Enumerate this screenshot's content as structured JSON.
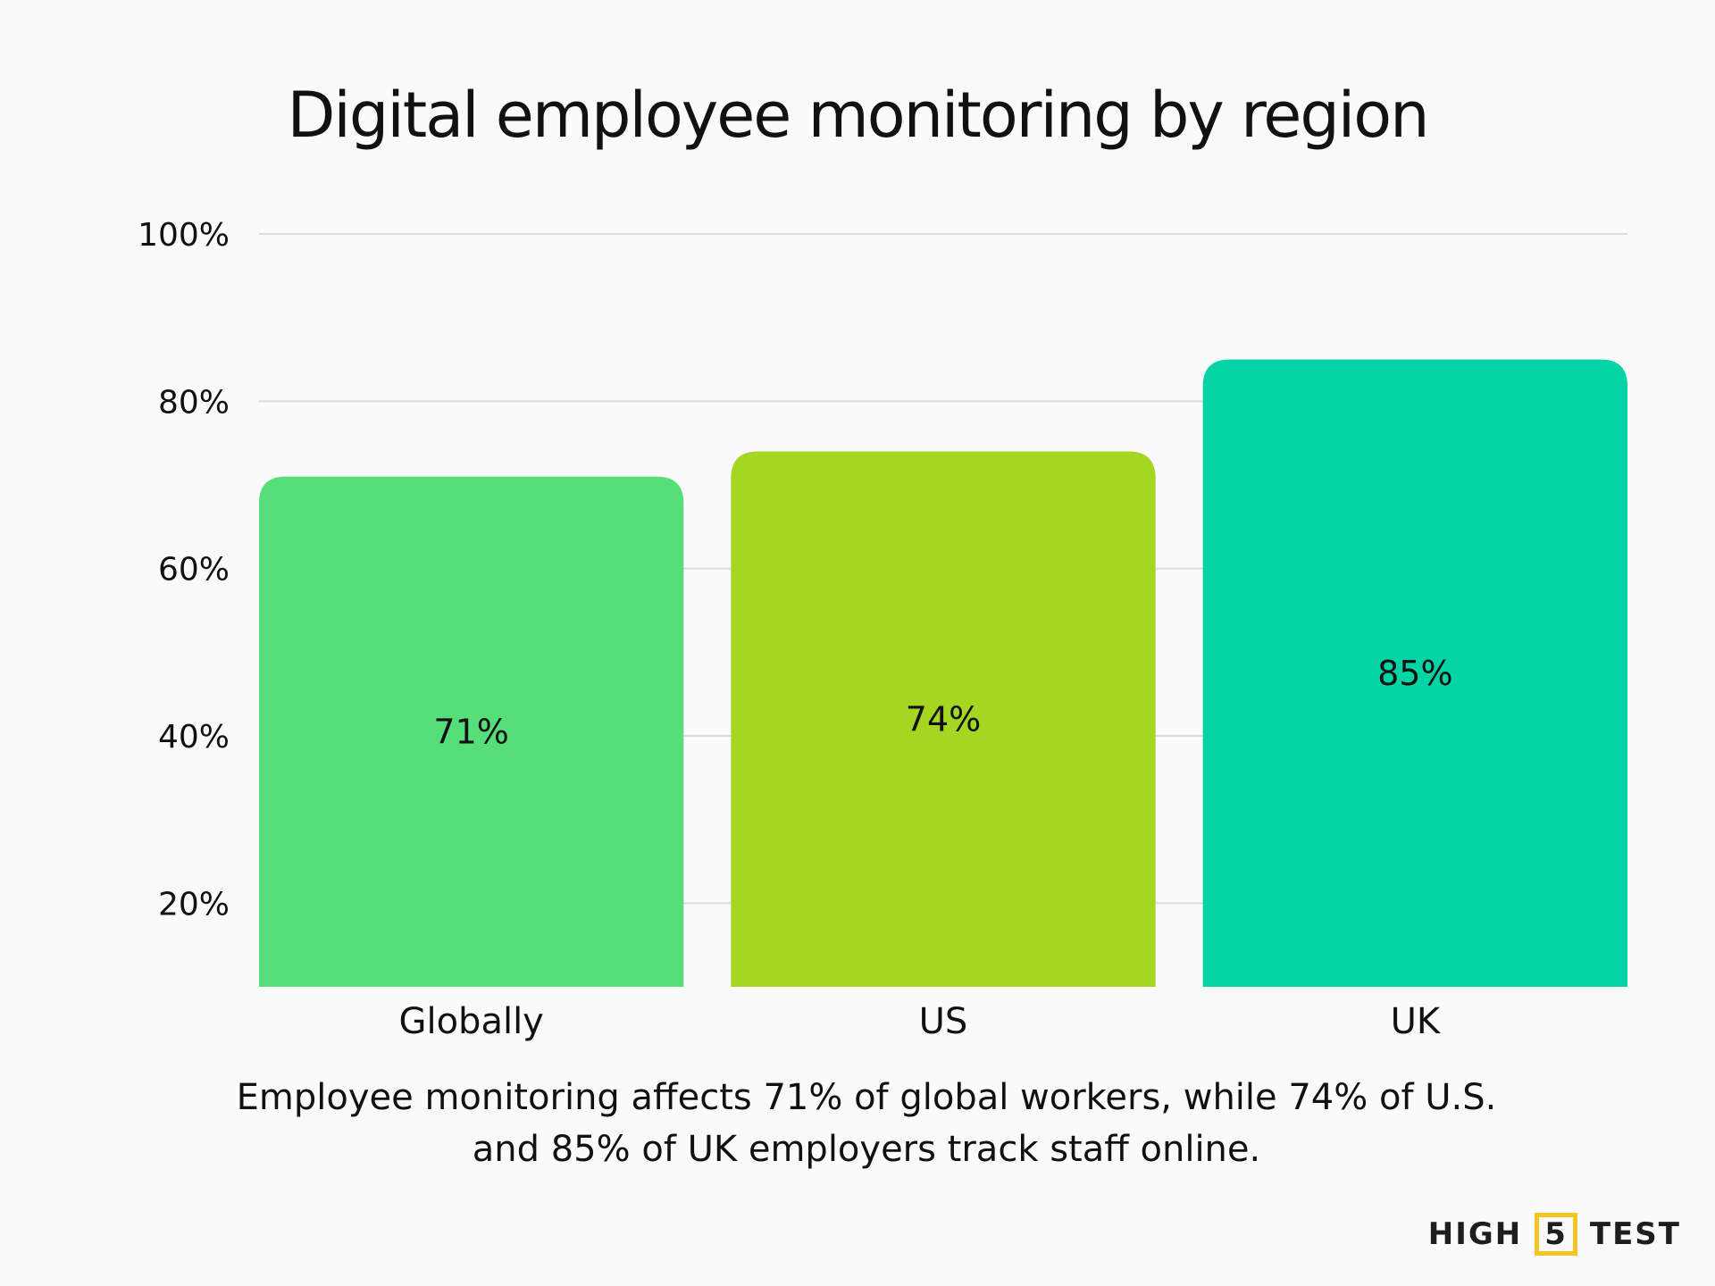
{
  "chart_data": {
    "type": "bar",
    "title": "Digital employee monitoring by region",
    "categories": [
      "Globally",
      "US",
      "UK"
    ],
    "values": [
      71,
      74,
      85
    ],
    "data_labels": [
      "71%",
      "74%",
      "85%"
    ],
    "colors": [
      "#56de7a",
      "#a5d622",
      "#02d4a6"
    ],
    "ylim": [
      10,
      100
    ],
    "yticks": [
      20,
      40,
      60,
      80,
      100
    ],
    "ytick_labels": [
      "20%",
      "40%",
      "60%",
      "80%",
      "100%"
    ],
    "grid": true,
    "xlabel": "",
    "ylabel": ""
  },
  "caption": {
    "line1": "Employee monitoring affects 71% of global workers, while 74% of U.S.",
    "line2": "and 85% of UK employers track staff online."
  },
  "logo": {
    "left": "HIGH",
    "mid": "5",
    "right": "TEST"
  }
}
